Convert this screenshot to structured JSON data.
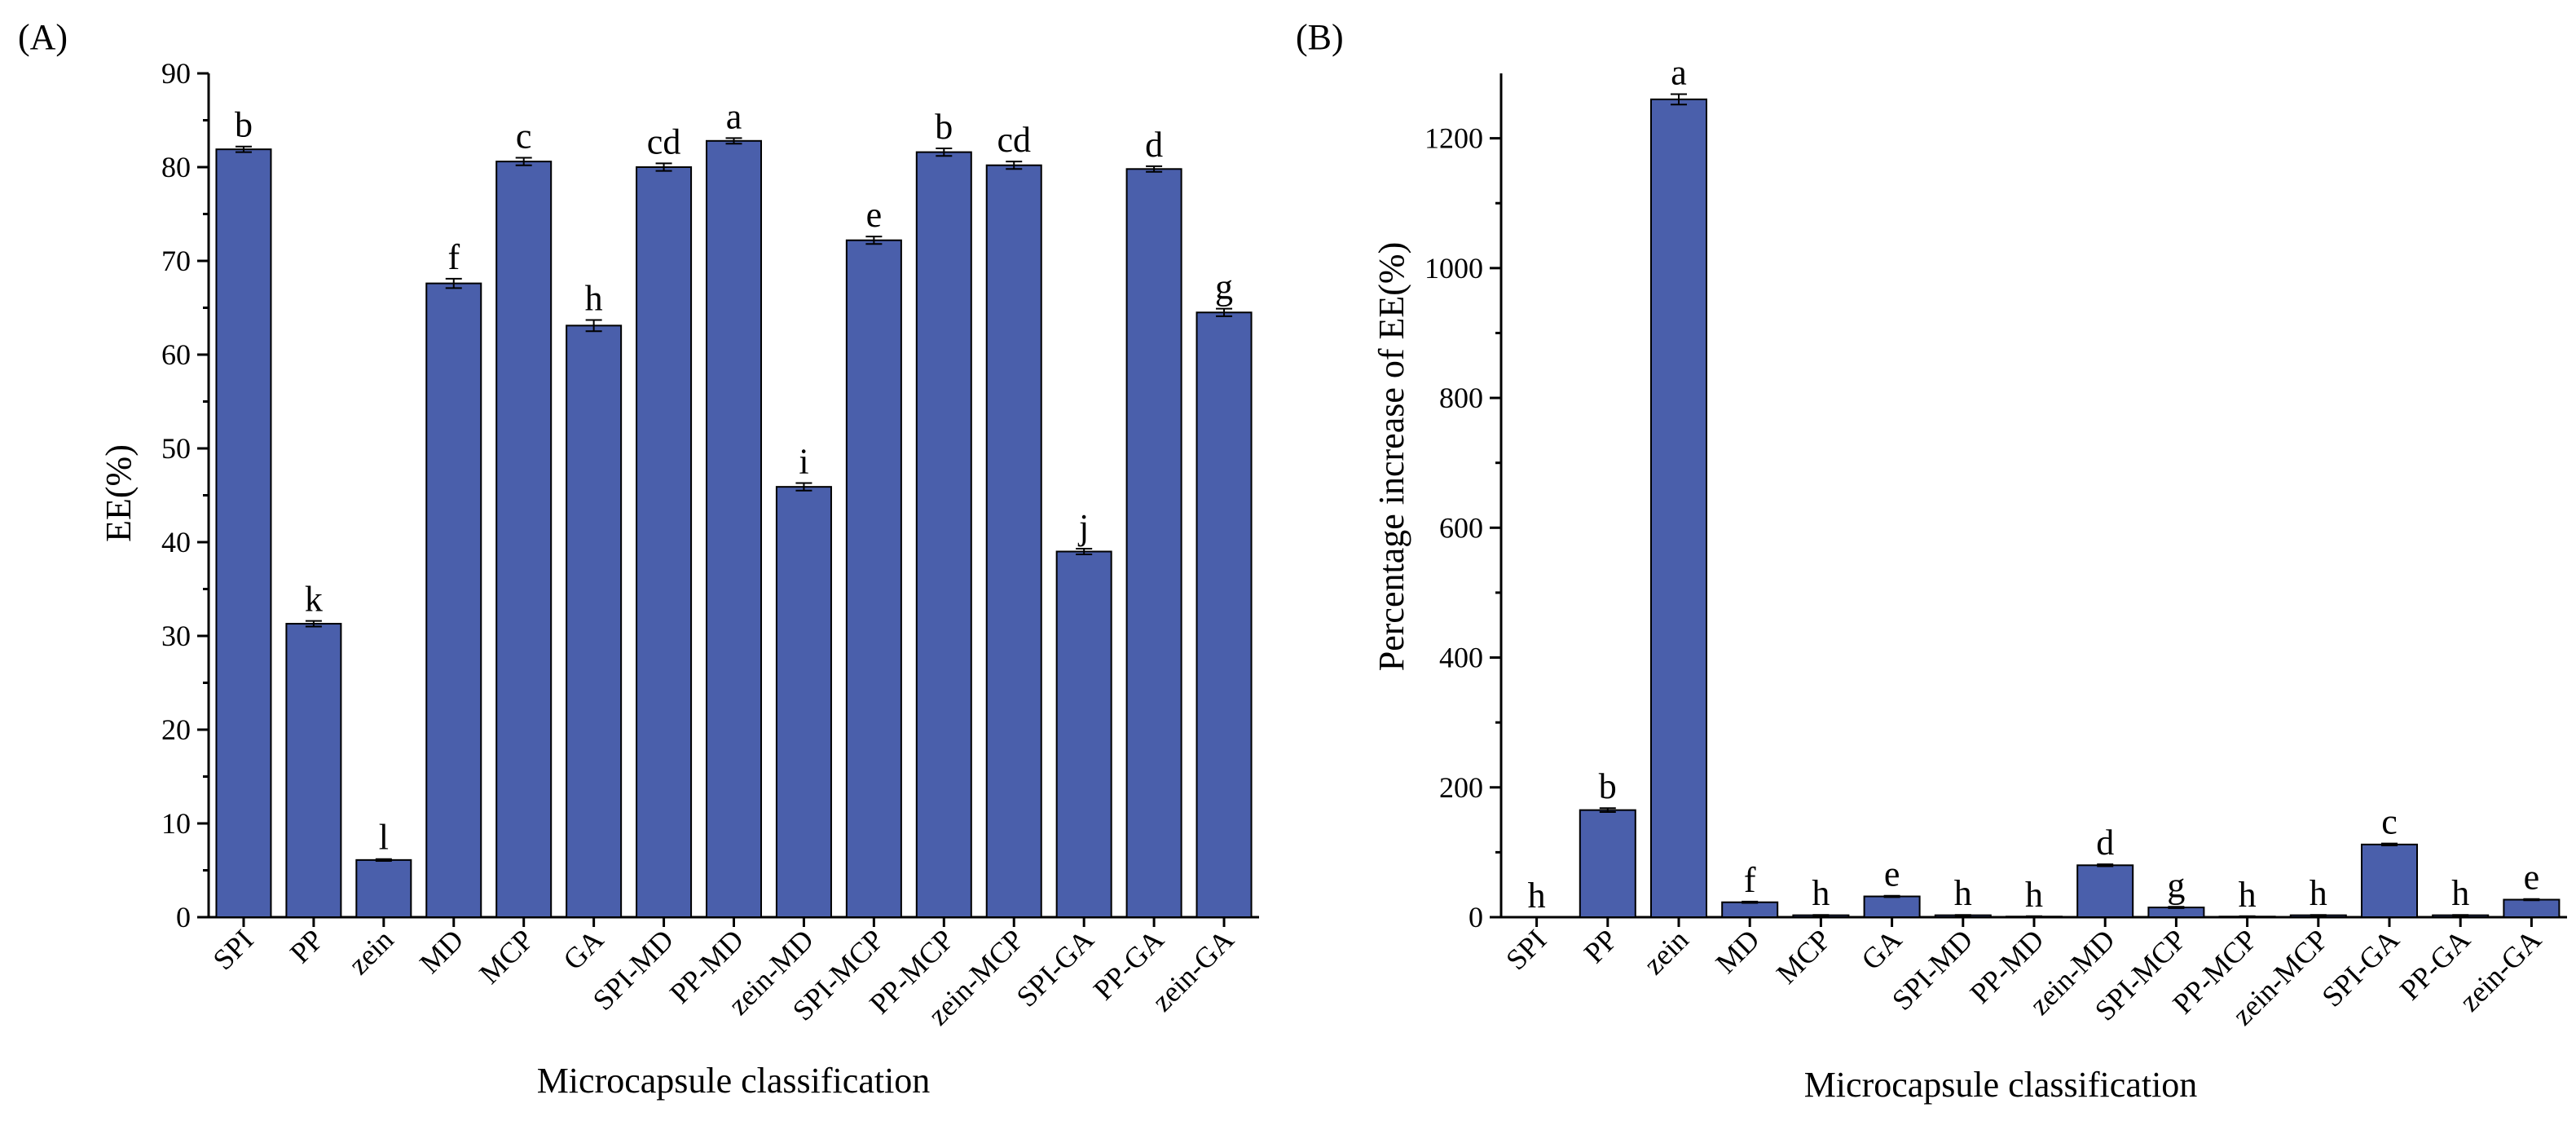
{
  "colors": {
    "bar_fill": "#4a5fab",
    "bar_stroke": "#000000",
    "axis": "#000000",
    "background": "#ffffff"
  },
  "chart_data": [
    {
      "panel": "(A)",
      "type": "bar",
      "title": "",
      "xlabel": "Microcapsule classification",
      "ylabel": "EE(%)",
      "ylim": [
        0,
        90
      ],
      "yticks": [
        0,
        10,
        20,
        30,
        40,
        50,
        60,
        70,
        80,
        90
      ],
      "grid": false,
      "categories": [
        "SPI",
        "PP",
        "zein",
        "MD",
        "MCP",
        "GA",
        "SPI-MD",
        "PP-MD",
        "zein-MD",
        "SPI-MCP",
        "PP-MCP",
        "zein-MCP",
        "SPI-GA",
        "PP-GA",
        "zein-GA"
      ],
      "values": [
        81.9,
        31.3,
        6.1,
        67.6,
        80.6,
        63.1,
        80.0,
        82.8,
        45.9,
        72.2,
        81.6,
        80.2,
        39.0,
        79.8,
        64.5
      ],
      "errors": [
        0.3,
        0.3,
        0.1,
        0.5,
        0.4,
        0.6,
        0.4,
        0.3,
        0.4,
        0.4,
        0.4,
        0.4,
        0.3,
        0.3,
        0.4
      ],
      "significance_letters": [
        "b",
        "k",
        "l",
        "f",
        "c",
        "h",
        "cd",
        "a",
        "i",
        "e",
        "b",
        "cd",
        "j",
        "d",
        "g"
      ]
    },
    {
      "panel": "(B)",
      "type": "bar",
      "title": "",
      "xlabel": "Microcapsule classification",
      "ylabel": "Percentage increase of EE(%)",
      "ylim": [
        0,
        1300
      ],
      "yticks": [
        0,
        200,
        400,
        600,
        800,
        1000,
        1200
      ],
      "grid": false,
      "categories": [
        "SPI",
        "PP",
        "zein",
        "MD",
        "MCP",
        "GA",
        "SPI-MD",
        "PP-MD",
        "zein-MD",
        "SPI-MCP",
        "PP-MCP",
        "zein-MCP",
        "SPI-GA",
        "PP-GA",
        "zein-GA"
      ],
      "values": [
        0,
        165,
        1260,
        23,
        3,
        32,
        3,
        1,
        80,
        15,
        1,
        3,
        112,
        3,
        27
      ],
      "errors": [
        0,
        3,
        8,
        1,
        0.5,
        1,
        0.5,
        0.5,
        1.5,
        1,
        0.5,
        0.5,
        1.5,
        0.5,
        1
      ],
      "significance_letters": [
        "h",
        "b",
        "a",
        "f",
        "h",
        "e",
        "h",
        "h",
        "d",
        "g",
        "h",
        "h",
        "c",
        "h",
        "e"
      ]
    }
  ]
}
